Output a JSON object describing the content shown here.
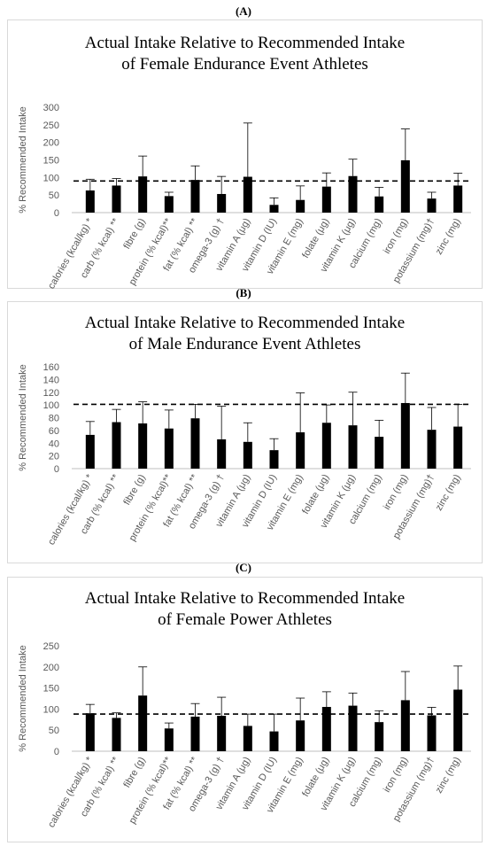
{
  "panels": [
    {
      "letter": "(A)"
    },
    {
      "letter": "(B)"
    },
    {
      "letter": "(C)"
    }
  ],
  "chart_data": [
    {
      "type": "bar",
      "title_line1": "Actual Intake Relative to Recommended Intake",
      "title_line2": "of Female Endurance Event Athletes",
      "ylabel": "% Recommended Intake",
      "ylim": [
        0,
        300
      ],
      "yticks": [
        0,
        50,
        100,
        150,
        200,
        250,
        300
      ],
      "reference_line": 90,
      "categories": [
        "calories (kcal/kg) *",
        "carb (% kcal) **",
        "fibre (g)",
        "protein (% kcal)**",
        "fat (% kcal) **",
        "omega-3 (g) †",
        "vitamin A (μg)",
        "vitamin D (IU)",
        "vitamin E (mg)",
        "folate (μg)",
        "vitamin K (μg)",
        "calcium (mg)",
        "iron (mg)",
        "potassium (mg)†",
        "zinc (mg)"
      ],
      "values": [
        63,
        77,
        103,
        47,
        93,
        53,
        102,
        22,
        36,
        74,
        104,
        46,
        149,
        40,
        77
      ],
      "error_upper": [
        95,
        97,
        161,
        58,
        133,
        103,
        255,
        42,
        76,
        113,
        152,
        72,
        238,
        58,
        112
      ],
      "bar_color": "#000000",
      "grid": false
    },
    {
      "type": "bar",
      "title_line1": "Actual Intake Relative to Recommended Intake",
      "title_line2": "of Male Endurance Event Athletes",
      "ylabel": "% Recommended Intake",
      "ylim": [
        0,
        160
      ],
      "yticks": [
        0,
        20,
        40,
        60,
        80,
        100,
        120,
        140,
        160
      ],
      "reference_line": 101,
      "categories": [
        "calories (kcal/kg) *",
        "carb (% kcal) **",
        "fibre (g)",
        "protein (% kcal)**",
        "fat (% kcal) **",
        "omega-3 (g) †",
        "vitamin A (μg)",
        "vitamin D (IU)",
        "vitamin E (mg)",
        "folate (μg)",
        "vitamin K (μg)",
        "calcium (mg)",
        "iron (mg)",
        "potassium (mg)†",
        "zinc (mg)"
      ],
      "values": [
        53,
        73,
        71,
        63,
        79,
        46,
        42,
        29,
        57,
        72,
        68,
        50,
        103,
        61,
        66
      ],
      "error_upper": [
        74,
        93,
        105,
        92,
        101,
        98,
        72,
        47,
        119,
        100,
        120,
        76,
        150,
        96,
        101
      ],
      "bar_color": "#000000",
      "grid": false
    },
    {
      "type": "bar",
      "title_line1": "Actual Intake Relative to Recommended Intake",
      "title_line2": "of Female Power Athletes",
      "ylabel": "% Recommended Intake",
      "ylim": [
        0,
        250
      ],
      "yticks": [
        0,
        50,
        100,
        150,
        200,
        250
      ],
      "reference_line": 88,
      "categories": [
        "calories (kcal/kg) *",
        "carb (% kcal) **",
        "fibre (g)",
        "protein (% kcal)**",
        "fat (% kcal) **",
        "omega-3 (g) †",
        "vitamin A (μg)",
        "vitamin D (IU)",
        "vitamin E (mg)",
        "folate (μg)",
        "vitamin K (μg)",
        "calcium (mg)",
        "iron (mg)",
        "potassium (mg)†",
        "zinc (mg)"
      ],
      "values": [
        90,
        79,
        132,
        54,
        82,
        84,
        60,
        47,
        73,
        105,
        108,
        69,
        121,
        85,
        146
      ],
      "error_upper": [
        111,
        91,
        200,
        67,
        113,
        128,
        88,
        88,
        126,
        141,
        138,
        96,
        189,
        104,
        202
      ],
      "bar_color": "#000000",
      "grid": false
    }
  ]
}
